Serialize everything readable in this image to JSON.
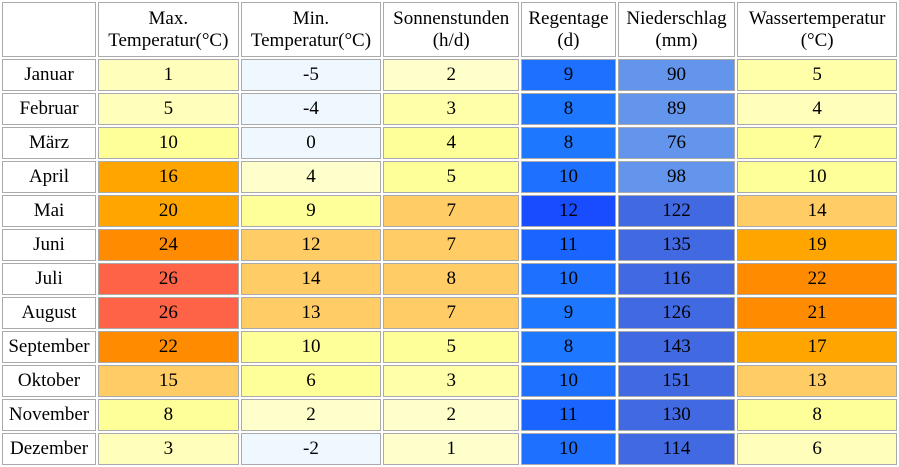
{
  "headers": [
    {
      "line1": "",
      "line2": ""
    },
    {
      "line1": "Max.",
      "line2": "Temperatur(°C)"
    },
    {
      "line1": "Min.",
      "line2": "Temperatur(°C)"
    },
    {
      "line1": "Sonnenstunden",
      "line2": "(h/d)"
    },
    {
      "line1": "Regentage",
      "line2": "(d)"
    },
    {
      "line1": "Niederschlag",
      "line2": "(mm)"
    },
    {
      "line1": "Wassertemperatur",
      "line2": "(°C)"
    }
  ],
  "rows": [
    {
      "month": "Januar",
      "max": "1",
      "min": "-5",
      "sun": "2",
      "rain_days": "9",
      "precip": "90",
      "water": "5"
    },
    {
      "month": "Februar",
      "max": "5",
      "min": "-4",
      "sun": "3",
      "rain_days": "8",
      "precip": "89",
      "water": "4"
    },
    {
      "month": "März",
      "max": "10",
      "min": "0",
      "sun": "4",
      "rain_days": "8",
      "precip": "76",
      "water": "7"
    },
    {
      "month": "April",
      "max": "16",
      "min": "4",
      "sun": "5",
      "rain_days": "10",
      "precip": "98",
      "water": "10"
    },
    {
      "month": "Mai",
      "max": "20",
      "min": "9",
      "sun": "7",
      "rain_days": "12",
      "precip": "122",
      "water": "14"
    },
    {
      "month": "Juni",
      "max": "24",
      "min": "12",
      "sun": "7",
      "rain_days": "11",
      "precip": "135",
      "water": "19"
    },
    {
      "month": "Juli",
      "max": "26",
      "min": "14",
      "sun": "8",
      "rain_days": "10",
      "precip": "116",
      "water": "22"
    },
    {
      "month": "August",
      "max": "26",
      "min": "13",
      "sun": "7",
      "rain_days": "9",
      "precip": "126",
      "water": "21"
    },
    {
      "month": "September",
      "max": "22",
      "min": "10",
      "sun": "5",
      "rain_days": "8",
      "precip": "143",
      "water": "17"
    },
    {
      "month": "Oktober",
      "max": "15",
      "min": "6",
      "sun": "3",
      "rain_days": "10",
      "precip": "151",
      "water": "13"
    },
    {
      "month": "November",
      "max": "8",
      "min": "2",
      "sun": "2",
      "rain_days": "11",
      "precip": "130",
      "water": "8"
    },
    {
      "month": "Dezember",
      "max": "3",
      "min": "-2",
      "sun": "1",
      "rain_days": "10",
      "precip": "114",
      "water": "6"
    }
  ],
  "cell_colors": [
    {
      "max": "#ffffbb",
      "min": "#f0f8ff",
      "sun": "#ffffcc",
      "rain_days": "#1e70ff",
      "precip": "#6495ed",
      "water": "#ffffaa"
    },
    {
      "max": "#ffffbb",
      "min": "#f0f8ff",
      "sun": "#ffffaa",
      "rain_days": "#1e78ff",
      "precip": "#6495ed",
      "water": "#ffffbb"
    },
    {
      "max": "#ffff99",
      "min": "#f0f8ff",
      "sun": "#ffff99",
      "rain_days": "#1e78ff",
      "precip": "#6495ed",
      "water": "#ffff99"
    },
    {
      "max": "#ffa500",
      "min": "#ffffcc",
      "sun": "#ffff99",
      "rain_days": "#1e70ff",
      "precip": "#6495ed",
      "water": "#ffff99"
    },
    {
      "max": "#ffa500",
      "min": "#ffff99",
      "sun": "#ffcc66",
      "rain_days": "#1a4cff",
      "precip": "#4169e1",
      "water": "#ffcc66"
    },
    {
      "max": "#ff8c00",
      "min": "#ffcc66",
      "sun": "#ffcc66",
      "rain_days": "#1a64ff",
      "precip": "#4169e1",
      "water": "#ffa500"
    },
    {
      "max": "#ff6347",
      "min": "#ffcc66",
      "sun": "#ffcc66",
      "rain_days": "#1e70ff",
      "precip": "#4169e1",
      "water": "#ff8c00"
    },
    {
      "max": "#ff6347",
      "min": "#ffcc66",
      "sun": "#ffcc66",
      "rain_days": "#1e78ff",
      "precip": "#4169e1",
      "water": "#ff8c00"
    },
    {
      "max": "#ff8c00",
      "min": "#ffff99",
      "sun": "#ffff99",
      "rain_days": "#1e78ff",
      "precip": "#4169e1",
      "water": "#ffa500"
    },
    {
      "max": "#ffcc66",
      "min": "#ffff99",
      "sun": "#ffffaa",
      "rain_days": "#1e70ff",
      "precip": "#4169e1",
      "water": "#ffcc66"
    },
    {
      "max": "#ffff99",
      "min": "#ffffcc",
      "sun": "#ffffcc",
      "rain_days": "#1a64ff",
      "precip": "#4169e1",
      "water": "#ffff99"
    },
    {
      "max": "#ffffbb",
      "min": "#f0f8ff",
      "sun": "#ffffcc",
      "rain_days": "#1e70ff",
      "precip": "#4169e1",
      "water": "#ffffbb"
    }
  ]
}
